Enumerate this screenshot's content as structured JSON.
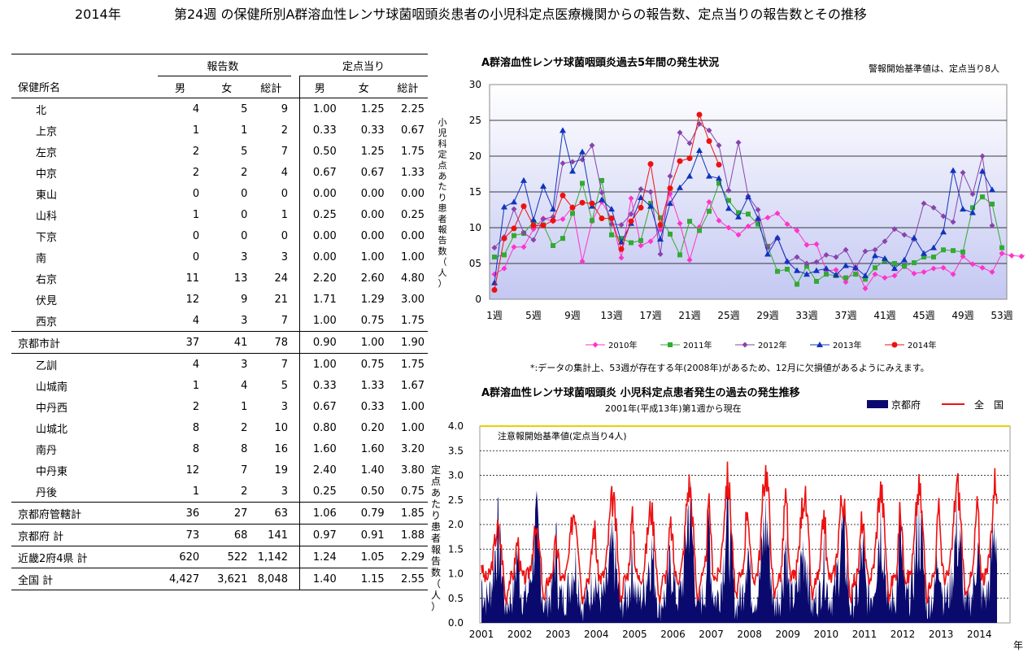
{
  "header": {
    "year": "2014年",
    "title": "第24週 の保健所別A群溶血性レンサ球菌咽頭炎患者の小児科定点医療機関からの報告数、定点当りの報告数とその推移"
  },
  "table": {
    "group_reports": "報告数",
    "group_per_sentinel": "定点当り",
    "col_office": "保健所名",
    "col_male": "男",
    "col_female": "女",
    "col_total": "総計",
    "rows": [
      {
        "name": "北",
        "m": "4",
        "f": "5",
        "t": "9",
        "pm": "1.00",
        "pf": "1.25",
        "pt": "2.25"
      },
      {
        "name": "上京",
        "m": "1",
        "f": "1",
        "t": "2",
        "pm": "0.33",
        "pf": "0.33",
        "pt": "0.67"
      },
      {
        "name": "左京",
        "m": "2",
        "f": "5",
        "t": "7",
        "pm": "0.50",
        "pf": "1.25",
        "pt": "1.75"
      },
      {
        "name": "中京",
        "m": "2",
        "f": "2",
        "t": "4",
        "pm": "0.67",
        "pf": "0.67",
        "pt": "1.33"
      },
      {
        "name": "東山",
        "m": "0",
        "f": "0",
        "t": "0",
        "pm": "0.00",
        "pf": "0.00",
        "pt": "0.00"
      },
      {
        "name": "山科",
        "m": "1",
        "f": "0",
        "t": "1",
        "pm": "0.25",
        "pf": "0.00",
        "pt": "0.25"
      },
      {
        "name": "下京",
        "m": "0",
        "f": "0",
        "t": "0",
        "pm": "0.00",
        "pf": "0.00",
        "pt": "0.00"
      },
      {
        "name": "南",
        "m": "0",
        "f": "3",
        "t": "3",
        "pm": "0.00",
        "pf": "1.00",
        "pt": "1.00"
      },
      {
        "name": "右京",
        "m": "11",
        "f": "13",
        "t": "24",
        "pm": "2.20",
        "pf": "2.60",
        "pt": "4.80"
      },
      {
        "name": "伏見",
        "m": "12",
        "f": "9",
        "t": "21",
        "pm": "1.71",
        "pf": "1.29",
        "pt": "3.00"
      },
      {
        "name": "西京",
        "m": "4",
        "f": "3",
        "t": "7",
        "pm": "1.00",
        "pf": "0.75",
        "pt": "1.75"
      },
      {
        "name": "京都市計",
        "m": "37",
        "f": "41",
        "t": "78",
        "pm": "0.90",
        "pf": "1.00",
        "pt": "1.90",
        "total": true
      },
      {
        "name": "乙訓",
        "m": "4",
        "f": "3",
        "t": "7",
        "pm": "1.00",
        "pf": "0.75",
        "pt": "1.75"
      },
      {
        "name": "山城南",
        "m": "1",
        "f": "4",
        "t": "5",
        "pm": "0.33",
        "pf": "1.33",
        "pt": "1.67"
      },
      {
        "name": "中丹西",
        "m": "2",
        "f": "1",
        "t": "3",
        "pm": "0.67",
        "pf": "0.33",
        "pt": "1.00"
      },
      {
        "name": "山城北",
        "m": "8",
        "f": "2",
        "t": "10",
        "pm": "0.80",
        "pf": "0.20",
        "pt": "1.00"
      },
      {
        "name": "南丹",
        "m": "8",
        "f": "8",
        "t": "16",
        "pm": "1.60",
        "pf": "1.60",
        "pt": "3.20"
      },
      {
        "name": "中丹東",
        "m": "12",
        "f": "7",
        "t": "19",
        "pm": "2.40",
        "pf": "1.40",
        "pt": "3.80"
      },
      {
        "name": "丹後",
        "m": "1",
        "f": "2",
        "t": "3",
        "pm": "0.25",
        "pf": "0.50",
        "pt": "0.75"
      },
      {
        "name": "京都府管轄計",
        "m": "36",
        "f": "27",
        "t": "63",
        "pm": "1.06",
        "pf": "0.79",
        "pt": "1.85",
        "total": true
      },
      {
        "name": "京都府 計",
        "m": "73",
        "f": "68",
        "t": "141",
        "pm": "0.97",
        "pf": "0.91",
        "pt": "1.88",
        "total": true
      },
      {
        "name": "近畿2府4県 計",
        "m": "620",
        "f": "522",
        "t": "1,142",
        "pm": "1.24",
        "pf": "1.05",
        "pt": "2.29",
        "total": true
      },
      {
        "name": "全国 計",
        "m": "4,427",
        "f": "3,621",
        "t": "8,048",
        "pm": "1.40",
        "pf": "1.15",
        "pt": "2.55",
        "total": true
      }
    ]
  },
  "chart_data": [
    {
      "type": "line",
      "title": "A群溶血性レンサ球菌咽頭炎過去5年間の発生状況",
      "note": "警報開始基準値は、定点当り8人",
      "ylabel": "小児科定点あたり患者報告数（人）",
      "ylim": [
        0,
        30
      ],
      "yticks": [
        "0",
        "05",
        "10",
        "15",
        "20",
        "25",
        "30"
      ],
      "xticks": [
        "1週",
        "5週",
        "9週",
        "13週",
        "17週",
        "21週",
        "25週",
        "29週",
        "33週",
        "37週",
        "41週",
        "45週",
        "49週",
        "53週"
      ],
      "footnote": "*:データの集計上、53週が存在する年(2008年)があるため、12月に欠損値があるようにみえます。",
      "series": [
        {
          "name": "2010年",
          "color": "#ff33cc",
          "marker": "diamond",
          "values": [
            3.5,
            4.3,
            7.3,
            7.3,
            9.8,
            11.3,
            10.9,
            11.2,
            12.9,
            5.3,
            10.9,
            13.6,
            11.3,
            5.8,
            14.1,
            7.5,
            8.1,
            9.7,
            14.7,
            10.6,
            5.5,
            10.1,
            13.6,
            11.0,
            10.0,
            9.0,
            10.2,
            11.0,
            11.4,
            12.0,
            10.5,
            9.6,
            7.6,
            7.7,
            4.0,
            4.1,
            2.4,
            4.5,
            1.5,
            3.5,
            3.0,
            3.3,
            4.6,
            3.6,
            3.8,
            4.3,
            4.4,
            3.5,
            6.0,
            4.9,
            4.4,
            3.8,
            6.4,
            6.1,
            6.0,
            6.5,
            13.4,
            6.9,
            13.9,
            10.7,
            13.0,
            12.4,
            3.9
          ]
        },
        {
          "name": "2011年",
          "color": "#33aa33",
          "marker": "square",
          "values": [
            5.9,
            6.2,
            8.9,
            9.2,
            10.8,
            10.4,
            7.5,
            8.5,
            12.0,
            16.2,
            11.0,
            16.6,
            9.0,
            8.5,
            7.9,
            8.2,
            13.4,
            11.4,
            9.1,
            6.2,
            10.9,
            9.6,
            12.3,
            16.2,
            13.8,
            12.1,
            11.9,
            10.5,
            7.4,
            3.9,
            4.2,
            2.1,
            4.6,
            2.5,
            3.5,
            3.3,
            3.0,
            3.5,
            2.8,
            4.4,
            5.4,
            5.0,
            4.6,
            5.1,
            5.9,
            5.9,
            6.9,
            6.8,
            6.6,
            12.8,
            14.3,
            13.3,
            7.2
          ]
        },
        {
          "name": "2012年",
          "color": "#8844aa",
          "marker": "diamond",
          "values": [
            7.2,
            8.7,
            12.6,
            9.3,
            8.3,
            11.2,
            11.5,
            19.0,
            19.2,
            19.5,
            21.5,
            14.9,
            10.5,
            10.4,
            11.9,
            15.4,
            15.0,
            6.3,
            17.2,
            23.3,
            21.8,
            24.5,
            23.6,
            21.5,
            15.2,
            21.9,
            14.4,
            12.5,
            7.2,
            8.6,
            5.2,
            5.9,
            5.0,
            5.2,
            6.2,
            5.9,
            6.9,
            4.3,
            6.7,
            6.9,
            8.1,
            9.8,
            9.0,
            8.4,
            13.4,
            12.8,
            11.6,
            10.8,
            17.7,
            14.7,
            20.0,
            10.3
          ]
        },
        {
          "name": "2013年",
          "color": "#1133bb",
          "marker": "triangle",
          "values": [
            2.3,
            12.9,
            13.6,
            16.6,
            11.1,
            15.8,
            12.6,
            23.6,
            17.9,
            20.6,
            13.0,
            13.9,
            12.6,
            8.0,
            10.6,
            14.2,
            13.0,
            8.4,
            13.4,
            15.6,
            17.2,
            20.8,
            17.2,
            16.9,
            12.7,
            11.5,
            14.3,
            11.3,
            6.3,
            8.6,
            5.3,
            4.0,
            3.5,
            4.0,
            4.3,
            3.4,
            4.7,
            4.4,
            3.3,
            6.1,
            5.7,
            4.3,
            5.5,
            8.6,
            6.4,
            7.2,
            9.4,
            18.0,
            12.6,
            12.1,
            17.9,
            15.3
          ]
        },
        {
          "name": "2014年",
          "color": "#ee1111",
          "marker": "circle",
          "values": [
            1.3,
            8.5,
            9.9,
            13.0,
            10.3,
            10.3,
            11.0,
            14.5,
            12.8,
            13.5,
            13.4,
            11.3,
            11.3,
            7.0,
            10.9,
            12.8,
            18.9,
            10.4,
            15.5,
            19.3,
            19.7,
            25.8,
            22.1,
            18.8
          ]
        }
      ]
    },
    {
      "type": "area",
      "title": "A群溶血性レンサ球菌咽頭炎 小児科定点患者発生の過去の発生推移",
      "subtitle": "2001年(平成13年)第1週から現在",
      "annotation": "注意報開始基準値(定点当り4人)",
      "ylabel": "定点あたり患者報告数（人）",
      "xlabel": "年",
      "ylim": [
        0,
        4.0
      ],
      "yticks": [
        "0.0",
        "0.5",
        "1.0",
        "1.5",
        "2.0",
        "2.5",
        "3.0",
        "3.5",
        "4.0"
      ],
      "xticks": [
        "2001",
        "2002",
        "2003",
        "2004",
        "2005",
        "2006",
        "2007",
        "2008",
        "2009",
        "2010",
        "2011",
        "2012",
        "2013",
        "2014"
      ],
      "series": [
        {
          "name": "京都府",
          "color": "#0a0a6e",
          "seasonal_peaks": [
            1.7,
            1.8,
            1.2,
            1.4,
            1.4,
            2.3,
            2.0,
            2.0,
            1.5,
            1.7,
            2.0,
            1.9,
            1.8,
            1.9
          ]
        },
        {
          "name": "全　国",
          "color": "#ee1111",
          "seasonal_peaks": [
            1.9,
            1.8,
            2.3,
            2.5,
            2.3,
            2.8,
            2.9,
            3.1,
            2.6,
            2.5,
            2.7,
            2.7,
            2.8,
            2.9
          ]
        }
      ]
    }
  ]
}
